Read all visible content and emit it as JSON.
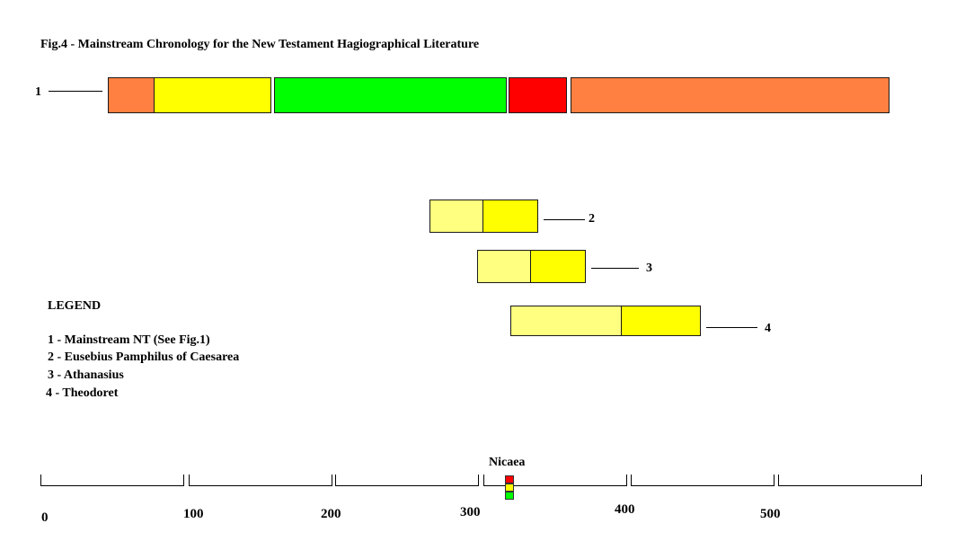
{
  "title": "Fig.4 - Mainstream Chronology for the New Testament Hagiographical Literature",
  "colors": {
    "orange": "#ff8040",
    "yellow": "#ffff00",
    "light_yellow": "#ffff80",
    "green": "#00ff00",
    "red": "#ff0000"
  },
  "rows": [
    {
      "label": "1"
    },
    {
      "label": "2"
    },
    {
      "label": "3"
    },
    {
      "label": "4"
    }
  ],
  "legend": {
    "heading": "LEGEND",
    "items": [
      "1 - Mainstream NT (See Fig.1)",
      "2 - Eusebius Pamphilus of Caesarea",
      "3 - Athanasius",
      "4 - Theodoret"
    ]
  },
  "axis": {
    "ticks": [
      "0",
      "100",
      "200",
      "300",
      "400",
      "500"
    ],
    "marker_label": "Nicaea"
  }
}
